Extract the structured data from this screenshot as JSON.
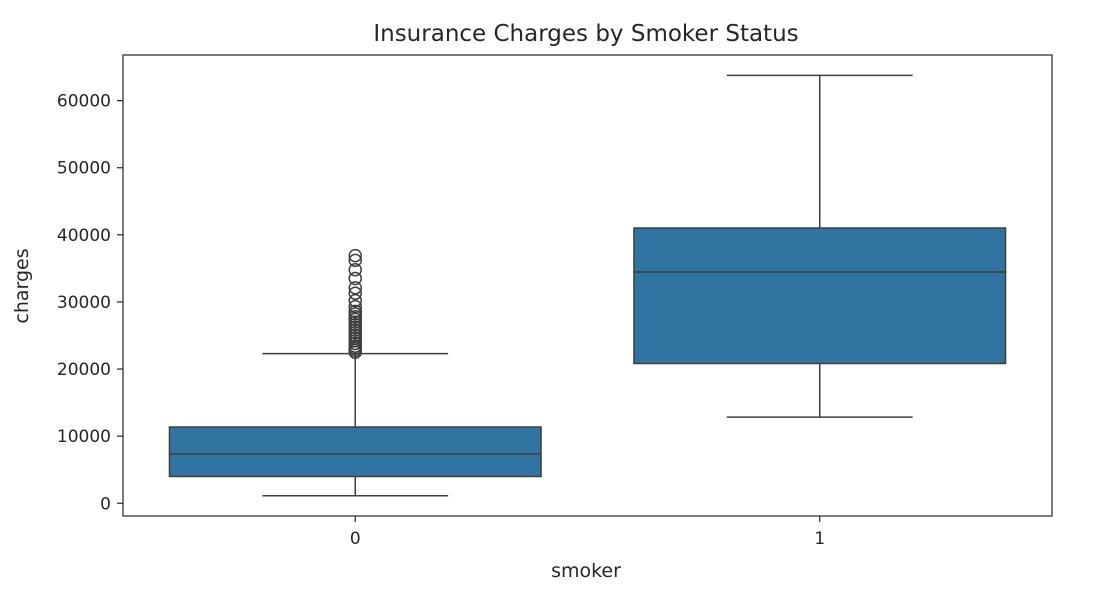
{
  "chart_data": {
    "type": "box",
    "title": "Insurance Charges by Smoker Status",
    "xlabel": "smoker",
    "ylabel": "charges",
    "categories": [
      "0",
      "1"
    ],
    "ylim": [
      -1900,
      66800
    ],
    "yticks": [
      0,
      10000,
      20000,
      30000,
      40000,
      50000,
      60000
    ],
    "grid": false,
    "color": "#3274a1",
    "boxes": [
      {
        "category": "0",
        "whisker_low": 1122,
        "q1": 3986,
        "median": 7346,
        "q3": 11362,
        "whisker_high": 22300,
        "outliers": [
          22500,
          22800,
          23100,
          23400,
          23800,
          24200,
          24600,
          25000,
          25400,
          25800,
          26200,
          26600,
          27000,
          27400,
          27800,
          28200,
          28600,
          29300,
          30200,
          31300,
          32100,
          33500,
          34800,
          36200,
          36900
        ]
      },
      {
        "category": "1",
        "whisker_low": 12829,
        "q1": 20826,
        "median": 34456,
        "q3": 41019,
        "whisker_high": 63770,
        "outliers": []
      }
    ]
  }
}
